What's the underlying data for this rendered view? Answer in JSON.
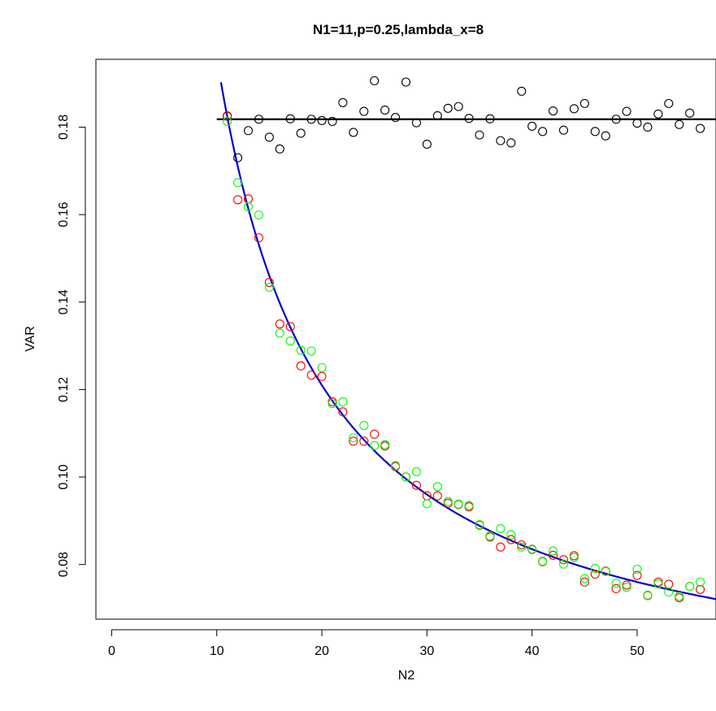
{
  "chart_data": {
    "type": "scatter",
    "title": "N1=11,p=0.25,lambda_x=8",
    "xlabel": "N2",
    "ylabel": "VAR",
    "xlim": [
      -1.5,
      57.5
    ],
    "ylim": [
      0.0675,
      0.1955
    ],
    "x_ticks": [
      0,
      10,
      20,
      30,
      40,
      50
    ],
    "y_ticks": [
      0.08,
      0.1,
      0.12,
      0.14,
      0.16,
      0.18
    ],
    "y_tick_labels": [
      "0.08",
      "0.10",
      "0.12",
      "0.14",
      "0.16",
      "0.18"
    ],
    "grid": false,
    "legend": "none",
    "series": [
      {
        "color": "#000000",
        "marker": "open-circle",
        "x": [
          11,
          12,
          13,
          14,
          15,
          16,
          17,
          18,
          19,
          20,
          21,
          22,
          23,
          24,
          25,
          26,
          27,
          28,
          29,
          30,
          31,
          32,
          33,
          34,
          35,
          36,
          37,
          38,
          39,
          40,
          41,
          42,
          43,
          44,
          45,
          46,
          47,
          48,
          49,
          50,
          51,
          52,
          53,
          54,
          55,
          56
        ],
        "values": [
          0.1825,
          0.173,
          0.1792,
          0.1818,
          0.1777,
          0.175,
          0.1819,
          0.1786,
          0.1818,
          0.1815,
          0.1813,
          0.1856,
          0.1788,
          0.1836,
          0.1906,
          0.1839,
          0.1822,
          0.1903,
          0.181,
          0.1761,
          0.1826,
          0.1843,
          0.1847,
          0.182,
          0.1782,
          0.1819,
          0.1769,
          0.1764,
          0.1882,
          0.1802,
          0.179,
          0.1837,
          0.1793,
          0.1842,
          0.1854,
          0.179,
          0.178,
          0.1818,
          0.1836,
          0.1809,
          0.18,
          0.183,
          0.1854,
          0.1806,
          0.1832,
          0.1797
        ]
      },
      {
        "color": "#ff0000",
        "marker": "open-circle",
        "x": [
          11,
          12,
          13,
          14,
          15,
          16,
          17,
          18,
          19,
          20,
          21,
          22,
          23,
          24,
          25,
          26,
          27,
          28,
          29,
          30,
          31,
          32,
          33,
          34,
          35,
          36,
          37,
          38,
          39,
          40,
          41,
          42,
          43,
          44,
          45,
          46,
          47,
          48,
          49,
          50,
          51,
          52,
          53,
          54,
          55,
          56
        ],
        "values": [
          0.1826,
          0.1634,
          0.1636,
          0.1547,
          0.1445,
          0.135,
          0.1344,
          0.1254,
          0.1233,
          0.123,
          0.1172,
          0.1149,
          0.1082,
          0.1082,
          0.1098,
          0.1071,
          0.1024,
          0.1,
          0.0981,
          0.0957,
          0.0957,
          0.094,
          0.0937,
          0.0932,
          0.089,
          0.0863,
          0.084,
          0.0857,
          0.0845,
          0.0835,
          0.0807,
          0.0821,
          0.0811,
          0.082,
          0.076,
          0.0778,
          0.0785,
          0.0745,
          0.0753,
          0.0775,
          0.0729,
          0.076,
          0.0755,
          0.0724,
          0.075,
          0.0743
        ]
      },
      {
        "color": "#00ff00",
        "marker": "open-circle",
        "x": [
          11,
          12,
          13,
          14,
          15,
          16,
          17,
          18,
          19,
          20,
          21,
          22,
          23,
          24,
          25,
          26,
          27,
          28,
          29,
          30,
          31,
          32,
          33,
          34,
          35,
          36,
          37,
          38,
          39,
          40,
          41,
          42,
          43,
          44,
          45,
          46,
          47,
          48,
          49,
          50,
          51,
          52,
          53,
          54,
          55,
          56
        ],
        "values": [
          0.1813,
          0.1673,
          0.1618,
          0.1599,
          0.1434,
          0.1329,
          0.1311,
          0.129,
          0.1288,
          0.125,
          0.1168,
          0.1172,
          0.109,
          0.1118,
          0.1072,
          0.1074,
          0.1026,
          0.1,
          0.1012,
          0.0939,
          0.0978,
          0.0944,
          0.0938,
          0.0935,
          0.0891,
          0.0865,
          0.0882,
          0.0868,
          0.084,
          0.0834,
          0.0806,
          0.0831,
          0.0801,
          0.0816,
          0.0768,
          0.0791,
          0.0784,
          0.0757,
          0.0748,
          0.0789,
          0.073,
          0.0756,
          0.0737,
          0.0727,
          0.075,
          0.076
        ]
      }
    ],
    "lines": [
      {
        "color": "#000000",
        "kind": "horizontal",
        "y": 0.1818,
        "x_from": 10,
        "x_to": 57.5
      },
      {
        "color": "#0000cd",
        "kind": "curve",
        "x_from": 10.4,
        "x_to": 57.5,
        "a": 0.046,
        "b": 1.5
      }
    ]
  }
}
